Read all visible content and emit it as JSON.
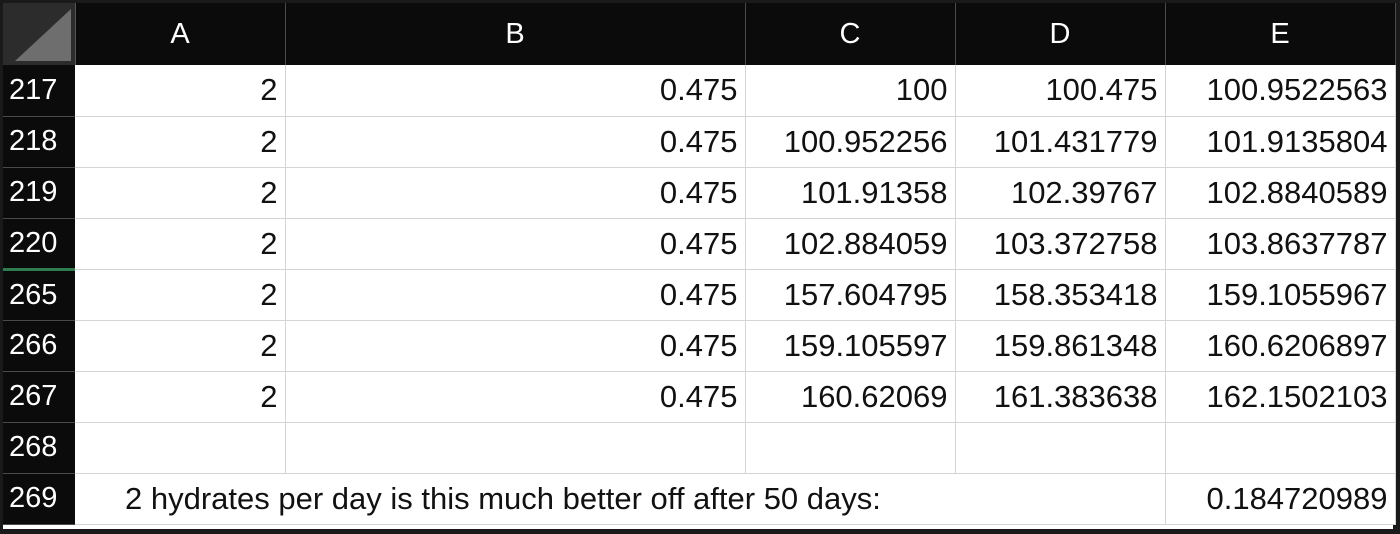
{
  "columns": [
    "A",
    "B",
    "C",
    "D",
    "E"
  ],
  "rows": [
    {
      "num": "217",
      "a": "2",
      "b": "0.475",
      "c": "100",
      "d": "100.475",
      "e": "100.9522563"
    },
    {
      "num": "218",
      "a": "2",
      "b": "0.475",
      "c": "100.952256",
      "d": "101.431779",
      "e": "101.9135804"
    },
    {
      "num": "219",
      "a": "2",
      "b": "0.475",
      "c": "101.91358",
      "d": "102.39767",
      "e": "102.8840589"
    },
    {
      "num": "220",
      "a": "2",
      "b": "0.475",
      "c": "102.884059",
      "d": "103.372758",
      "e": "103.8637787"
    },
    {
      "num": "265",
      "a": "2",
      "b": "0.475",
      "c": "157.604795",
      "d": "158.353418",
      "e": "159.1055967"
    },
    {
      "num": "266",
      "a": "2",
      "b": "0.475",
      "c": "159.105597",
      "d": "159.861348",
      "e": "160.6206897"
    },
    {
      "num": "267",
      "a": "2",
      "b": "0.475",
      "c": "160.62069",
      "d": "161.383638",
      "e": "162.1502103"
    }
  ],
  "empty_row": {
    "num": "268"
  },
  "summary_row": {
    "num": "269",
    "text": "2 hydrates per day is this much better off after 50 days:",
    "value": "0.184720989"
  },
  "colors": {
    "header_bg": "#0b0b0b",
    "header_text": "#ffffff",
    "gridline": "#d4d4d4",
    "hidden_rows_marker": "#2e7d4f"
  }
}
